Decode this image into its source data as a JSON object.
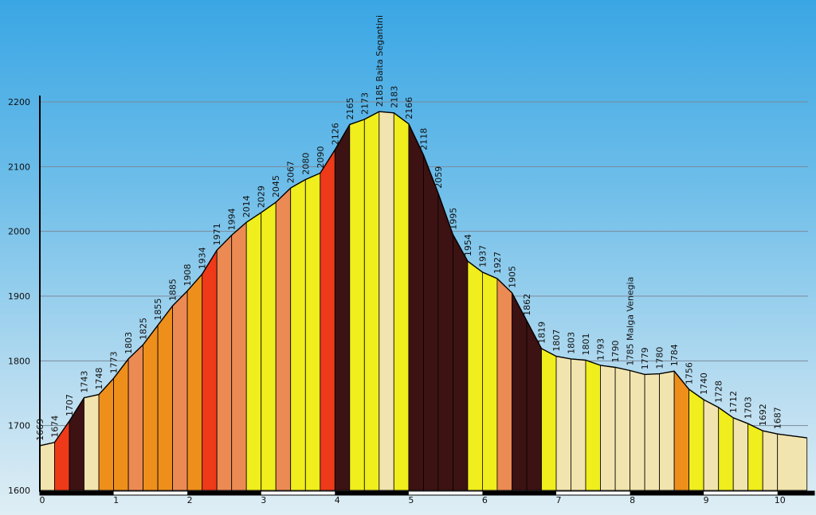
{
  "chart_data": {
    "type": "area",
    "xlim": [
      0,
      10.5
    ],
    "ylim": [
      1600,
      2200
    ],
    "x_ticks": [
      0,
      1,
      2,
      3,
      4,
      5,
      6,
      7,
      8,
      9,
      10
    ],
    "x_tick_labels": [
      "0",
      "1",
      "2",
      "3",
      "4",
      "5",
      "6",
      "7",
      "8",
      "9",
      "10"
    ],
    "y_ticks": [
      1600,
      1700,
      1800,
      1900,
      2000,
      2100,
      2200
    ],
    "y_tick_labels": [
      "1600",
      "1700",
      "1800",
      "1900",
      "2000",
      "2100",
      "2200"
    ],
    "grid": true,
    "colors": {
      "flat": "#f2e4ae",
      "easy": "#f0ee1c",
      "moderate": "#ee8f1c",
      "medium": "#ec8a54",
      "hard": "#ee3a18",
      "steep": "#3d1212",
      "outline": "#000000"
    },
    "points": [
      {
        "x": 0.0,
        "y": 1669,
        "label": "1669"
      },
      {
        "x": 0.2,
        "y": 1674,
        "label": "1674"
      },
      {
        "x": 0.4,
        "y": 1707,
        "label": "1707"
      },
      {
        "x": 0.6,
        "y": 1743,
        "label": "1743"
      },
      {
        "x": 0.8,
        "y": 1748,
        "label": "1748"
      },
      {
        "x": 1.0,
        "y": 1773,
        "label": "1773"
      },
      {
        "x": 1.2,
        "y": 1803,
        "label": "1803"
      },
      {
        "x": 1.4,
        "y": 1825,
        "label": "1825"
      },
      {
        "x": 1.6,
        "y": 1855,
        "label": "1855"
      },
      {
        "x": 1.8,
        "y": 1885,
        "label": "1885"
      },
      {
        "x": 2.0,
        "y": 1908,
        "label": "1908"
      },
      {
        "x": 2.2,
        "y": 1934,
        "label": "1934"
      },
      {
        "x": 2.4,
        "y": 1971,
        "label": "1971"
      },
      {
        "x": 2.6,
        "y": 1994,
        "label": "1994"
      },
      {
        "x": 2.8,
        "y": 2014,
        "label": "2014"
      },
      {
        "x": 3.0,
        "y": 2029,
        "label": "2029"
      },
      {
        "x": 3.2,
        "y": 2045,
        "label": "2045"
      },
      {
        "x": 3.4,
        "y": 2067,
        "label": "2067"
      },
      {
        "x": 3.6,
        "y": 2080,
        "label": "2080"
      },
      {
        "x": 3.8,
        "y": 2090,
        "label": "2090"
      },
      {
        "x": 4.0,
        "y": 2126,
        "label": "2126"
      },
      {
        "x": 4.2,
        "y": 2165,
        "label": "2165"
      },
      {
        "x": 4.4,
        "y": 2173,
        "label": "2173"
      },
      {
        "x": 4.6,
        "y": 2185,
        "label": "2185 Baita Segantini"
      },
      {
        "x": 4.8,
        "y": 2183,
        "label": "2183"
      },
      {
        "x": 5.0,
        "y": 2166,
        "label": "2166"
      },
      {
        "x": 5.2,
        "y": 2118,
        "label": "2118"
      },
      {
        "x": 5.4,
        "y": 2059,
        "label": "2059"
      },
      {
        "x": 5.6,
        "y": 1995,
        "label": "1995"
      },
      {
        "x": 5.8,
        "y": 1954,
        "label": "1954"
      },
      {
        "x": 6.0,
        "y": 1937,
        "label": "1937"
      },
      {
        "x": 6.2,
        "y": 1927,
        "label": "1927"
      },
      {
        "x": 6.4,
        "y": 1905,
        "label": "1905"
      },
      {
        "x": 6.6,
        "y": 1862,
        "label": "1862"
      },
      {
        "x": 6.8,
        "y": 1819,
        "label": "1819"
      },
      {
        "x": 7.0,
        "y": 1807,
        "label": "1807"
      },
      {
        "x": 7.2,
        "y": 1803,
        "label": "1803"
      },
      {
        "x": 7.4,
        "y": 1801,
        "label": "1801"
      },
      {
        "x": 7.6,
        "y": 1793,
        "label": "1793"
      },
      {
        "x": 7.8,
        "y": 1790,
        "label": "1790"
      },
      {
        "x": 8.0,
        "y": 1785,
        "label": "1785 Malga Venegia"
      },
      {
        "x": 8.2,
        "y": 1779,
        "label": "1779"
      },
      {
        "x": 8.4,
        "y": 1780,
        "label": "1780"
      },
      {
        "x": 8.6,
        "y": 1784,
        "label": "1784"
      },
      {
        "x": 8.8,
        "y": 1756,
        "label": "1756"
      },
      {
        "x": 9.0,
        "y": 1740,
        "label": "1740"
      },
      {
        "x": 9.2,
        "y": 1728,
        "label": "1728"
      },
      {
        "x": 9.4,
        "y": 1712,
        "label": "1712"
      },
      {
        "x": 9.6,
        "y": 1703,
        "label": "1703"
      },
      {
        "x": 9.8,
        "y": 1692,
        "label": "1692"
      },
      {
        "x": 10.0,
        "y": 1687,
        "label": "1687"
      }
    ],
    "segments": [
      {
        "from": 0.0,
        "to": 0.2,
        "level": "flat"
      },
      {
        "from": 0.2,
        "to": 0.4,
        "level": "hard"
      },
      {
        "from": 0.4,
        "to": 0.6,
        "level": "steep"
      },
      {
        "from": 0.6,
        "to": 0.8,
        "level": "flat"
      },
      {
        "from": 0.8,
        "to": 1.0,
        "level": "moderate"
      },
      {
        "from": 1.0,
        "to": 1.2,
        "level": "moderate"
      },
      {
        "from": 1.2,
        "to": 1.4,
        "level": "medium"
      },
      {
        "from": 1.4,
        "to": 1.6,
        "level": "moderate"
      },
      {
        "from": 1.6,
        "to": 1.8,
        "level": "moderate"
      },
      {
        "from": 1.8,
        "to": 2.0,
        "level": "medium"
      },
      {
        "from": 2.0,
        "to": 2.2,
        "level": "moderate"
      },
      {
        "from": 2.2,
        "to": 2.4,
        "level": "hard"
      },
      {
        "from": 2.4,
        "to": 2.6,
        "level": "medium"
      },
      {
        "from": 2.6,
        "to": 2.8,
        "level": "medium"
      },
      {
        "from": 2.8,
        "to": 3.0,
        "level": "easy"
      },
      {
        "from": 3.0,
        "to": 3.2,
        "level": "easy"
      },
      {
        "from": 3.2,
        "to": 3.4,
        "level": "medium"
      },
      {
        "from": 3.4,
        "to": 3.6,
        "level": "easy"
      },
      {
        "from": 3.6,
        "to": 3.8,
        "level": "easy"
      },
      {
        "from": 3.8,
        "to": 4.0,
        "level": "hard"
      },
      {
        "from": 4.0,
        "to": 4.2,
        "level": "steep"
      },
      {
        "from": 4.2,
        "to": 4.4,
        "level": "easy"
      },
      {
        "from": 4.4,
        "to": 4.6,
        "level": "easy"
      },
      {
        "from": 4.6,
        "to": 4.8,
        "level": "flat"
      },
      {
        "from": 4.8,
        "to": 5.0,
        "level": "easy"
      },
      {
        "from": 5.0,
        "to": 5.2,
        "level": "steep"
      },
      {
        "from": 5.2,
        "to": 5.4,
        "level": "steep"
      },
      {
        "from": 5.4,
        "to": 5.6,
        "level": "steep"
      },
      {
        "from": 5.6,
        "to": 5.8,
        "level": "steep"
      },
      {
        "from": 5.8,
        "to": 6.0,
        "level": "easy"
      },
      {
        "from": 6.0,
        "to": 6.2,
        "level": "easy"
      },
      {
        "from": 6.2,
        "to": 6.4,
        "level": "medium"
      },
      {
        "from": 6.4,
        "to": 6.6,
        "level": "steep"
      },
      {
        "from": 6.6,
        "to": 6.8,
        "level": "steep"
      },
      {
        "from": 6.8,
        "to": 7.0,
        "level": "easy"
      },
      {
        "from": 7.0,
        "to": 7.2,
        "level": "flat"
      },
      {
        "from": 7.2,
        "to": 7.4,
        "level": "flat"
      },
      {
        "from": 7.4,
        "to": 7.6,
        "level": "easy"
      },
      {
        "from": 7.6,
        "to": 7.8,
        "level": "flat"
      },
      {
        "from": 7.8,
        "to": 8.0,
        "level": "flat"
      },
      {
        "from": 8.0,
        "to": 8.2,
        "level": "flat"
      },
      {
        "from": 8.2,
        "to": 8.4,
        "level": "flat"
      },
      {
        "from": 8.4,
        "to": 8.6,
        "level": "flat"
      },
      {
        "from": 8.6,
        "to": 8.8,
        "level": "moderate"
      },
      {
        "from": 8.8,
        "to": 9.0,
        "level": "easy"
      },
      {
        "from": 9.0,
        "to": 9.2,
        "level": "flat"
      },
      {
        "from": 9.2,
        "to": 9.4,
        "level": "easy"
      },
      {
        "from": 9.4,
        "to": 9.6,
        "level": "flat"
      },
      {
        "from": 9.6,
        "to": 9.8,
        "level": "easy"
      },
      {
        "from": 9.8,
        "to": 10.0,
        "level": "flat"
      },
      {
        "from": 10.0,
        "to": 10.4,
        "level": "flat"
      }
    ],
    "end_y": 1687
  }
}
